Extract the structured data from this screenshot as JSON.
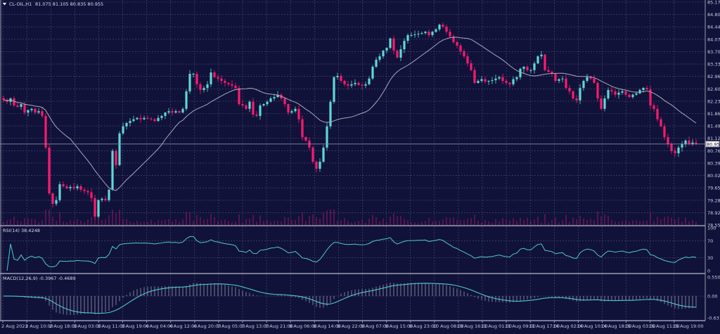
{
  "header": {
    "symbol_label": "CL-OIL,H1",
    "ohlc": "81.075 81.105 80.835 80.955"
  },
  "colors": {
    "background": "#10123a",
    "grid": "#4a4f7a",
    "bull": "#5fd8d2",
    "bear": "#ff1a6e",
    "moving_average": "#a9a9b8",
    "indicator_line": "#4fc9cc",
    "volume": "#c0186a"
  },
  "chart_data": [
    {
      "type": "candlestick",
      "title": "CL-OIL,H1",
      "price_axis_ticks": [
        "85.170",
        "84.800",
        "84.440",
        "84.070",
        "83.700",
        "83.330",
        "82.960",
        "82.600",
        "82.230",
        "81.860",
        "81.490",
        "81.120",
        "80.760",
        "80.390",
        "80.020",
        "79.650",
        "79.280",
        "78.920",
        "78.550"
      ],
      "ylim": [
        78.55,
        85.17
      ],
      "current_price": "80.955",
      "time_axis_ticks": [
        "2 Aug 2023",
        "2 Aug 10:00",
        "2 Aug 18:00",
        "3 Aug 03:00",
        "3 Aug 11:00",
        "3 Aug 19:00",
        "4 Aug 04:00",
        "4 Aug 12:00",
        "4 Aug 20:00",
        "7 Aug 05:00",
        "7 Aug 13:00",
        "7 Aug 21:00",
        "8 Aug 06:00",
        "8 Aug 14:00",
        "8 Aug 22:00",
        "9 Aug 07:00",
        "9 Aug 15:00",
        "9 Aug 23:00",
        "10 Aug 08:00",
        "10 Aug 16:00",
        "11 Aug 01:00",
        "11 Aug 09:00",
        "11 Aug 17:00",
        "14 Aug 02:00",
        "14 Aug 10:00",
        "14 Aug 18:00",
        "15 Aug 03:00",
        "15 Aug 11:00",
        "15 Aug 19:00"
      ],
      "grid": true,
      "overlays": [
        "moving average",
        "volume"
      ],
      "close": [
        82.27,
        82.21,
        82.31,
        82.1,
        82.06,
        82.14,
        81.89,
        81.96,
        82.0,
        81.89,
        81.93,
        81.79,
        80.85,
        79.49,
        79.18,
        79.29,
        79.76,
        79.7,
        79.64,
        79.68,
        79.64,
        79.7,
        79.6,
        79.56,
        79.52,
        79.35,
        78.8,
        79.29,
        79.33,
        79.29,
        79.6,
        80.75,
        80.33,
        81.27,
        81.48,
        81.58,
        81.64,
        81.69,
        81.73,
        81.69,
        81.73,
        81.71,
        81.69,
        81.64,
        81.73,
        81.79,
        81.89,
        81.93,
        81.89,
        81.93,
        81.89,
        82.0,
        82.52,
        83.04,
        83.04,
        82.73,
        82.56,
        82.62,
        82.73,
        83.08,
        82.94,
        82.9,
        82.83,
        82.77,
        82.73,
        82.69,
        82.62,
        82.14,
        82.1,
        82.0,
        82.21,
        81.83,
        81.79,
        82.1,
        82.14,
        82.21,
        82.31,
        82.35,
        82.42,
        82.31,
        82.14,
        81.89,
        81.93,
        82.0,
        81.69,
        81.16,
        81.06,
        80.85,
        80.43,
        80.22,
        80.43,
        80.85,
        81.48,
        82.21,
        82.94,
        82.98,
        82.83,
        82.73,
        82.69,
        82.73,
        82.77,
        82.71,
        82.69,
        82.73,
        82.9,
        83.25,
        83.46,
        83.56,
        83.73,
        83.81,
        84.09,
        83.73,
        83.52,
        83.77,
        84.02,
        84.19,
        84.19,
        84.21,
        84.23,
        84.25,
        84.29,
        84.19,
        84.29,
        84.36,
        84.5,
        84.44,
        84.29,
        84.15,
        83.98,
        83.88,
        83.71,
        83.56,
        83.35,
        83.15,
        82.77,
        82.83,
        82.88,
        82.81,
        82.83,
        82.85,
        82.9,
        82.94,
        82.83,
        82.77,
        82.73,
        82.88,
        82.94,
        83.19,
        83.25,
        83.15,
        83.15,
        83.35,
        83.56,
        83.61,
        83.15,
        83.1,
        83.04,
        82.83,
        82.88,
        82.9,
        82.62,
        82.52,
        82.31,
        82.25,
        82.62,
        82.83,
        82.94,
        82.9,
        82.77,
        82.31,
        82.0,
        82.31,
        82.56,
        82.52,
        82.42,
        82.48,
        82.52,
        82.42,
        82.35,
        82.42,
        82.46,
        82.56,
        82.62,
        82.58,
        82.1,
        82.0,
        81.69,
        81.48,
        81.16,
        80.95,
        80.75,
        80.68,
        80.85,
        80.95,
        81.06,
        80.95,
        81.0,
        80.955
      ]
    },
    {
      "type": "line",
      "title": "RSI(14) 38.4248",
      "ylim": [
        0,
        100
      ],
      "axis_ticks": [
        "100",
        "70",
        "30",
        "0"
      ]
    },
    {
      "type": "bar+line",
      "title": "MACD(12,26,9) -0.3967 -0.4689",
      "ylim": [
        -0.6317,
        0.5509
      ],
      "axis_ticks": [
        "0.5509",
        "0.00",
        "-0.6317"
      ]
    }
  ]
}
